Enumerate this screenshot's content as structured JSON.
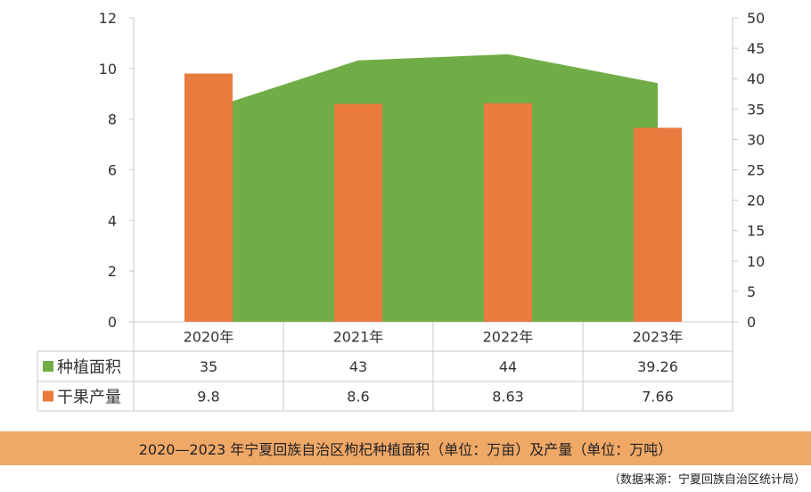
{
  "colors": {
    "area": "#70ad47",
    "bar": "#e97b3f",
    "caption_bg": "#f0a867",
    "grid": "#c8c8c8",
    "text": "#333333"
  },
  "chart_data": {
    "type": "bar",
    "categories": [
      "2020年",
      "2021年",
      "2022年",
      "2023年"
    ],
    "series": [
      {
        "name": "种植面积",
        "type": "area",
        "axis": "right",
        "values": [
          35,
          43,
          44,
          39.26
        ],
        "labels": [
          "35",
          "43",
          "44",
          "39.26"
        ]
      },
      {
        "name": "干果产量",
        "type": "bar",
        "axis": "left",
        "values": [
          9.8,
          8.6,
          8.63,
          7.66
        ],
        "labels": [
          "9.8",
          "8.6",
          "8.63",
          "7.66"
        ]
      }
    ],
    "y_left": {
      "min": 0,
      "max": 12,
      "ticks": [
        "0",
        "2",
        "4",
        "6",
        "8",
        "10",
        "12"
      ]
    },
    "y_right": {
      "min": 0,
      "max": 50,
      "ticks": [
        "0",
        "5",
        "10",
        "15",
        "20",
        "25",
        "30",
        "35",
        "40",
        "45",
        "50"
      ]
    },
    "data_table": true
  },
  "caption": "2020—2023 年宁夏回族自治区枸杞种植面积（单位：万亩）及产量（单位：万吨）",
  "source": "（数据来源：宁夏回族自治区统计局）"
}
